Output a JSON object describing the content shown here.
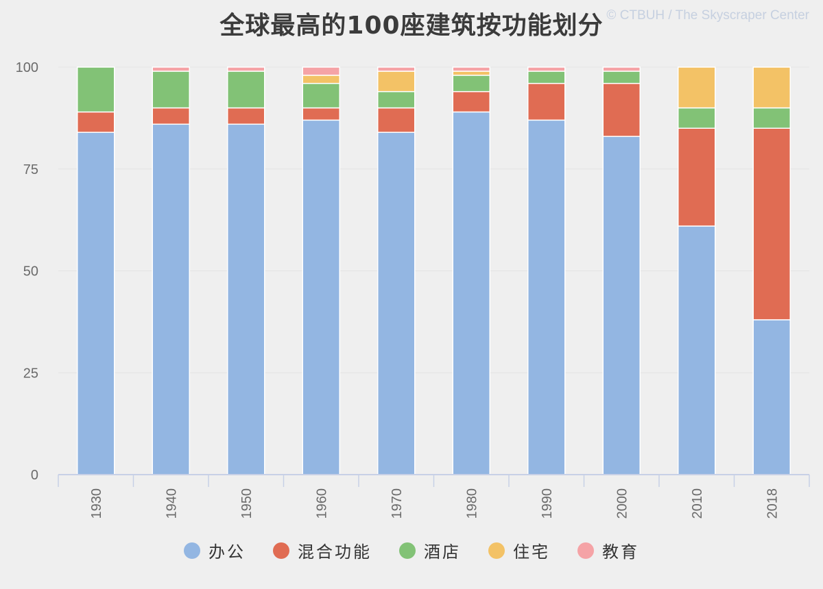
{
  "chart_data": {
    "type": "bar",
    "stacked": true,
    "title": "全球最高的100座建筑按功能划分",
    "credit": "© CTBUH / The Skyscraper Center",
    "categories": [
      "1930",
      "1940",
      "1950",
      "1960",
      "1970",
      "1980",
      "1990",
      "2000",
      "2010",
      "2018"
    ],
    "series": [
      {
        "name": "办公",
        "color": "#93b6e2",
        "values": [
          84,
          86,
          86,
          87,
          84,
          89,
          87,
          83,
          61,
          38
        ]
      },
      {
        "name": "混合功能",
        "color": "#e06c53",
        "values": [
          5,
          4,
          4,
          3,
          6,
          5,
          9,
          13,
          24,
          47
        ]
      },
      {
        "name": "酒店",
        "color": "#82c276",
        "values": [
          11,
          9,
          9,
          6,
          4,
          4,
          3,
          3,
          5,
          5
        ]
      },
      {
        "name": "住宅",
        "color": "#f3c266",
        "values": [
          0,
          0,
          0,
          2,
          5,
          1,
          0,
          0,
          10,
          10
        ]
      },
      {
        "name": "教育",
        "color": "#f5a3a6",
        "values": [
          0,
          1,
          1,
          2,
          1,
          1,
          1,
          1,
          0,
          0
        ]
      }
    ],
    "y_ticks": [
      "0",
      "25",
      "50",
      "75",
      "100"
    ],
    "ylim": [
      0,
      100
    ],
    "xlabel": "",
    "ylabel": "",
    "legend_position": "bottom-center"
  }
}
